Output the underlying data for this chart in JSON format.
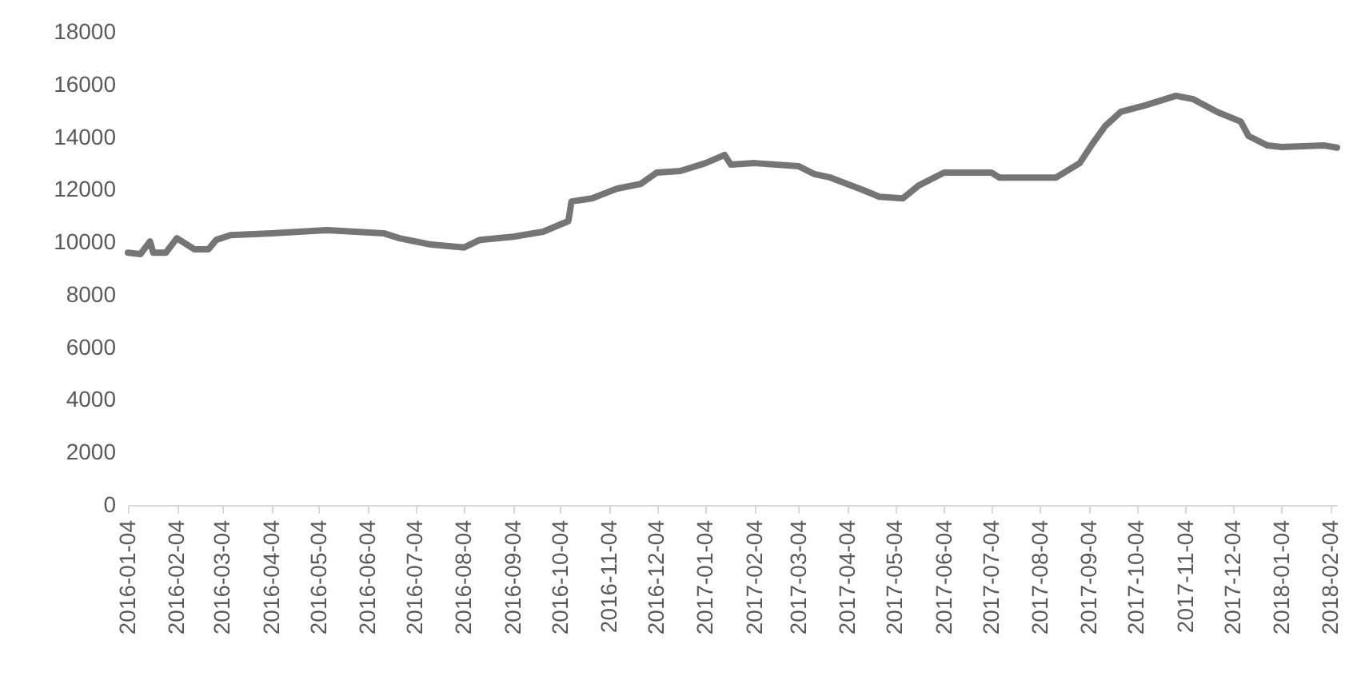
{
  "chart_data": {
    "type": "line",
    "x": [
      "2016-01-04",
      "2016-01-12",
      "2016-01-18",
      "2016-01-20",
      "2016-01-28",
      "2016-02-04",
      "2016-02-15",
      "2016-02-24",
      "2016-02-29",
      "2016-03-09",
      "2016-04-04",
      "2016-05-09",
      "2016-06-14",
      "2016-06-24",
      "2016-07-14",
      "2016-08-04",
      "2016-08-14",
      "2016-09-04",
      "2016-09-23",
      "2016-10-09",
      "2016-10-11",
      "2016-10-24",
      "2016-11-09",
      "2016-11-24",
      "2016-12-04",
      "2016-12-19",
      "2017-01-04",
      "2017-01-16",
      "2017-01-20",
      "2017-02-04",
      "2017-03-04",
      "2017-03-14",
      "2017-03-24",
      "2017-04-14",
      "2017-04-24",
      "2017-05-09",
      "2017-05-19",
      "2017-06-04",
      "2017-07-04",
      "2017-07-09",
      "2017-08-14",
      "2017-08-29",
      "2017-09-06",
      "2017-09-14",
      "2017-09-24",
      "2017-10-09",
      "2017-10-29",
      "2017-11-09",
      "2017-11-24",
      "2017-12-09",
      "2017-12-14",
      "2017-12-26",
      "2018-01-04",
      "2018-01-31",
      "2018-02-08"
    ],
    "series": [
      {
        "color": "#757575",
        "values": [
          9600,
          9550,
          10030,
          9600,
          9600,
          10150,
          9730,
          9730,
          10090,
          10270,
          10340,
          10460,
          10340,
          10150,
          9910,
          9800,
          10090,
          10210,
          10400,
          10800,
          11550,
          11670,
          12040,
          12220,
          12650,
          12710,
          13010,
          13320,
          12950,
          13010,
          12890,
          12590,
          12460,
          11980,
          11730,
          11670,
          12160,
          12650,
          12650,
          12460,
          12460,
          13010,
          13740,
          14410,
          14960,
          15200,
          15570,
          15440,
          14960,
          14590,
          14040,
          13680,
          13620,
          13680,
          13600
        ]
      }
    ],
    "xlim": [
      "2016-01-04",
      "2018-02-08"
    ],
    "xticks": [
      "2016-01-04",
      "2016-02-04",
      "2016-03-04",
      "2016-04-04",
      "2016-05-04",
      "2016-06-04",
      "2016-07-04",
      "2016-08-04",
      "2016-09-04",
      "2016-10-04",
      "2016-11-04",
      "2016-12-04",
      "2017-01-04",
      "2017-02-04",
      "2017-03-04",
      "2017-04-04",
      "2017-05-04",
      "2017-06-04",
      "2017-07-04",
      "2017-08-04",
      "2017-09-04",
      "2017-10-04",
      "2017-11-04",
      "2017-12-04",
      "2018-01-04",
      "2018-02-04"
    ],
    "ylim": [
      0,
      18000
    ],
    "yticks": [
      0,
      2000,
      4000,
      6000,
      8000,
      10000,
      12000,
      14000,
      16000,
      18000
    ],
    "grid": false,
    "legend": false,
    "marker": "none",
    "line_style": "solid"
  }
}
